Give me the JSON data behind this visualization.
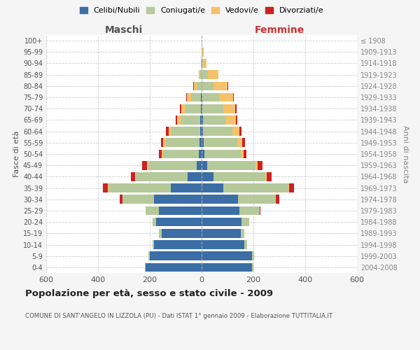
{
  "age_groups": [
    "0-4",
    "5-9",
    "10-14",
    "15-19",
    "20-24",
    "25-29",
    "30-34",
    "35-39",
    "40-44",
    "45-49",
    "50-54",
    "55-59",
    "60-64",
    "65-69",
    "70-74",
    "75-79",
    "80-84",
    "85-89",
    "90-94",
    "95-99",
    "100+"
  ],
  "birth_years": [
    "2004-2008",
    "1999-2003",
    "1994-1998",
    "1989-1993",
    "1984-1988",
    "1979-1983",
    "1974-1978",
    "1969-1973",
    "1964-1968",
    "1959-1963",
    "1954-1958",
    "1949-1953",
    "1944-1948",
    "1939-1943",
    "1934-1938",
    "1929-1933",
    "1924-1928",
    "1919-1923",
    "1914-1918",
    "1909-1913",
    "≤ 1908"
  ],
  "colors": {
    "celibi": "#3a6ea5",
    "coniugati": "#b5c99a",
    "vedovi": "#f5c26b",
    "divorziati": "#cc2222"
  },
  "maschi": {
    "celibi": [
      215,
      200,
      185,
      155,
      175,
      165,
      185,
      120,
      55,
      20,
      10,
      8,
      5,
      5,
      3,
      2,
      0,
      0,
      0,
      0,
      0
    ],
    "coniugati": [
      5,
      5,
      5,
      10,
      15,
      50,
      120,
      240,
      200,
      185,
      140,
      130,
      110,
      75,
      58,
      38,
      20,
      5,
      2,
      0,
      0
    ],
    "vedovi": [
      0,
      0,
      0,
      0,
      0,
      0,
      0,
      2,
      2,
      5,
      5,
      10,
      12,
      15,
      18,
      18,
      10,
      5,
      0,
      0,
      0
    ],
    "divorziati": [
      0,
      0,
      0,
      0,
      0,
      0,
      10,
      20,
      15,
      20,
      10,
      10,
      10,
      5,
      5,
      2,
      2,
      0,
      0,
      0,
      0
    ]
  },
  "femmine": {
    "celibi": [
      195,
      195,
      165,
      150,
      155,
      145,
      140,
      85,
      45,
      22,
      10,
      8,
      5,
      5,
      3,
      2,
      0,
      0,
      0,
      0,
      0
    ],
    "coniugati": [
      5,
      8,
      10,
      15,
      30,
      80,
      145,
      250,
      200,
      185,
      140,
      130,
      115,
      90,
      80,
      65,
      45,
      25,
      5,
      2,
      0
    ],
    "vedovi": [
      0,
      0,
      0,
      0,
      0,
      0,
      2,
      3,
      5,
      8,
      12,
      18,
      25,
      38,
      48,
      55,
      55,
      40,
      15,
      5,
      0
    ],
    "divorziati": [
      0,
      0,
      0,
      0,
      0,
      2,
      12,
      20,
      20,
      20,
      12,
      12,
      10,
      5,
      5,
      2,
      2,
      0,
      0,
      0,
      0
    ]
  },
  "title": "Popolazione per età, sesso e stato civile - 2009",
  "subtitle": "COMUNE DI SANT'ANGELO IN LIZZOLA (PU) - Dati ISTAT 1° gennaio 2009 - Elaborazione TUTTITALIA.IT",
  "xlabel_left": "Maschi",
  "xlabel_right": "Femmine",
  "ylabel_left": "Fasce di età",
  "ylabel_right": "Anni di nascita",
  "xlim": 600,
  "bg_color": "#f5f5f5",
  "plot_bg": "#ffffff",
  "grid_color": "#cccccc",
  "legend_labels": [
    "Celibi/Nubili",
    "Coniugati/e",
    "Vedovi/e",
    "Divorziati/e"
  ]
}
